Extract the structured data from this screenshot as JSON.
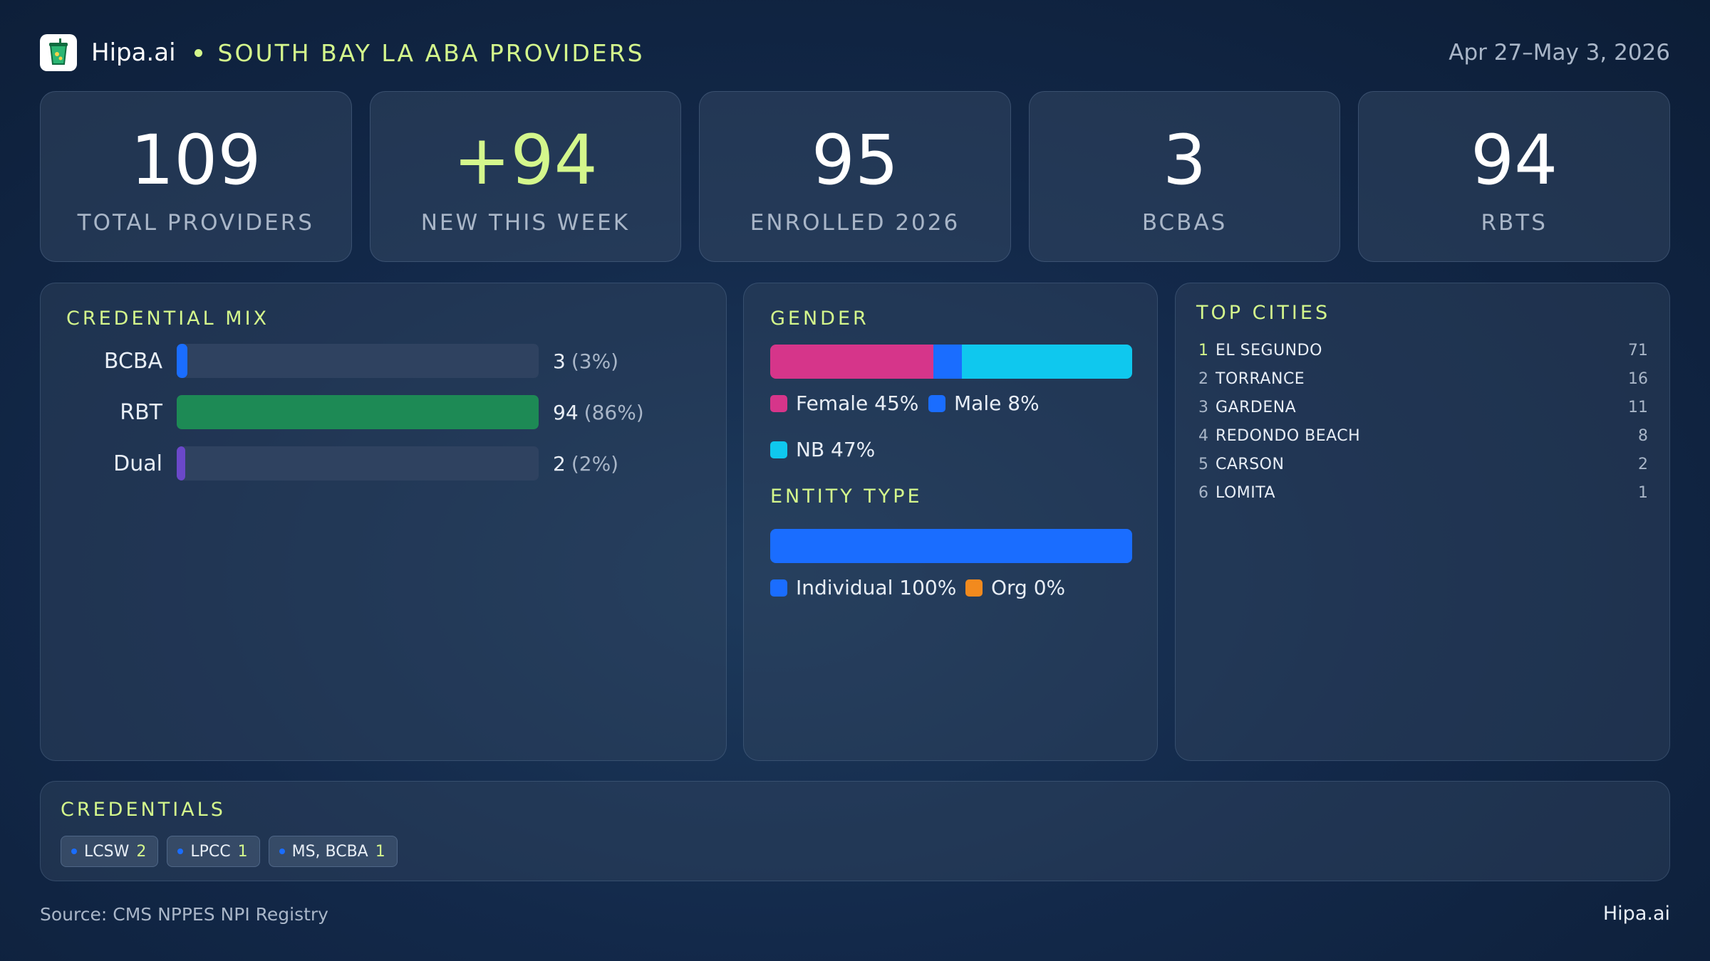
{
  "header": {
    "logo_icon": "cup-icon",
    "brand": "Hipa.ai",
    "subtitle": "SOUTH BAY LA ABA PROVIDERS",
    "date": "Apr 27–May 3, 2026"
  },
  "kpis": [
    {
      "value": "109",
      "label": "TOTAL PROVIDERS"
    },
    {
      "value": "+94",
      "label": "NEW THIS WEEK"
    },
    {
      "value": "95",
      "label": "ENROLLED 2026"
    },
    {
      "value": "3",
      "label": "BCBAS"
    },
    {
      "value": "94",
      "label": "RBTS"
    }
  ],
  "credential_mix": {
    "title": "CREDENTIAL MIX",
    "rows": [
      {
        "label": "BCBA",
        "count": "3",
        "pct": "(3%)",
        "fraction": 0.03,
        "color": "#1a6dff"
      },
      {
        "label": "RBT",
        "count": "94",
        "pct": "(86%)",
        "fraction": 1.0,
        "color": "#1d8a55"
      },
      {
        "label": "Dual",
        "count": "2",
        "pct": "(2%)",
        "fraction": 0.02,
        "color": "#6b48c9"
      }
    ]
  },
  "gender": {
    "title": "GENDER",
    "segments": [
      {
        "label": "Female 45%",
        "fraction": 0.45,
        "color": "#d6358a"
      },
      {
        "label": "Male 8%",
        "fraction": 0.08,
        "color": "#1a6dff"
      },
      {
        "label": "NB 47%",
        "fraction": 0.47,
        "color": "#0fc8ee"
      }
    ]
  },
  "entity_type": {
    "title": "ENTITY TYPE",
    "segments": [
      {
        "label": "Individual 100%",
        "fraction": 1.0,
        "color": "#1a6dff"
      },
      {
        "label": "Org 0%",
        "fraction": 0.0,
        "color": "#f28a1e"
      }
    ]
  },
  "top_cities": {
    "title": "TOP CITIES",
    "rows": [
      {
        "rank": "1",
        "name": "EL SEGUNDO",
        "count": "71"
      },
      {
        "rank": "2",
        "name": "TORRANCE",
        "count": "16"
      },
      {
        "rank": "3",
        "name": "GARDENA",
        "count": "11"
      },
      {
        "rank": "4",
        "name": "REDONDO BEACH",
        "count": "8"
      },
      {
        "rank": "5",
        "name": "CARSON",
        "count": "2"
      },
      {
        "rank": "6",
        "name": "LOMITA",
        "count": "1"
      }
    ]
  },
  "credentials": {
    "title": "CREDENTIALS",
    "chips": [
      {
        "label": "LCSW",
        "count": "2"
      },
      {
        "label": "LPCC",
        "count": "1"
      },
      {
        "label": "MS, BCBA",
        "count": "1"
      }
    ]
  },
  "footer": {
    "source": "Source: CMS NPPES NPI Registry",
    "brand": "Hipa.ai"
  },
  "colors": {
    "accent": "#d4f78c",
    "muted": "#a9b6c8"
  }
}
